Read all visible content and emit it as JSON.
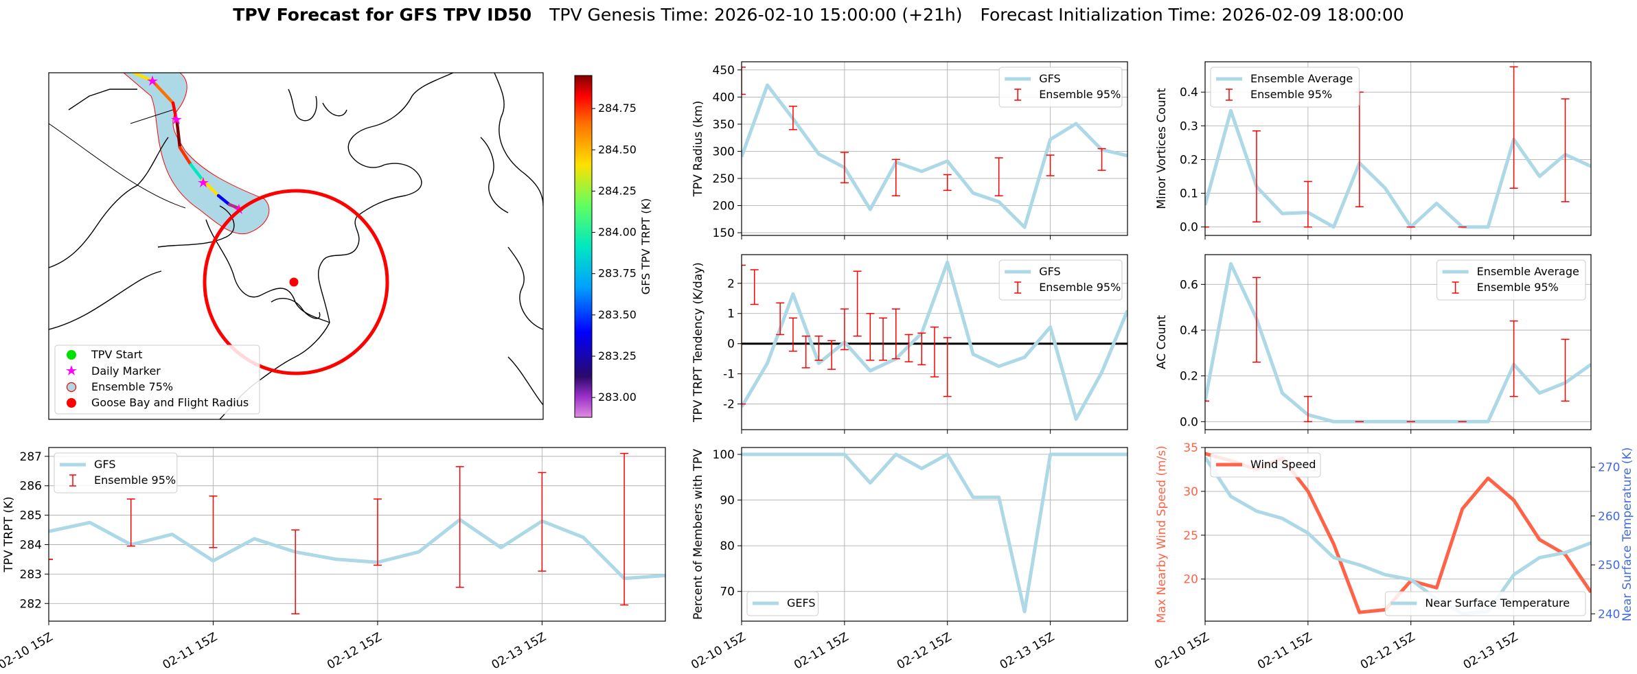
{
  "title": {
    "main": "TPV Forecast for GFS TPV ID50",
    "genesis": "TPV Genesis Time: 2026-02-10 15:00:00 (+21h)",
    "init": "Forecast Initialization Time: 2026-02-09 18:00:00"
  },
  "colors": {
    "gfs": "#add8e6",
    "err": "#ff0000",
    "wind": "#ff6347",
    "temp_axis": "#4169e1",
    "wind_axis": "#ff6347",
    "grid": "#b0b0b0",
    "map_fill": "#add8e6",
    "radius": "#ff0000"
  },
  "time_ticks": [
    "02-10 15Z",
    "02-11 15Z",
    "02-12 15Z",
    "02-13 15Z"
  ],
  "map": {
    "legend": [
      "TPV Start",
      "Daily Marker",
      "Ensemble 75%",
      "Goose Bay and Flight Radius"
    ],
    "colorbar": {
      "label": "GFS TPV TRPT (K)",
      "ticks": [
        "284.75",
        "284.50",
        "284.25",
        "284.00",
        "283.75",
        "283.50",
        "283.25",
        "283.00"
      ],
      "tick_values": [
        284.75,
        284.5,
        284.25,
        284.0,
        283.75,
        283.5,
        283.25,
        283.0
      ],
      "range": [
        282.88,
        284.95
      ]
    }
  },
  "chart_data": [
    {
      "id": "trpt",
      "type": "line",
      "title": "",
      "xlabel": "",
      "ylabel": "TPV TRPT (K)",
      "x_range": [
        0,
        90
      ],
      "ylim": [
        281.4,
        287.3
      ],
      "yticks": [
        282,
        283,
        284,
        285,
        286,
        287
      ],
      "zero_line": false,
      "legend": [
        "GFS",
        "Ensemble 95%"
      ],
      "legend_pos": "upper-left",
      "series": [
        {
          "name": "GFS",
          "x": [
            0,
            6,
            12,
            18,
            24,
            30,
            36,
            42,
            48,
            54,
            60,
            66,
            72,
            78,
            84,
            90
          ],
          "values": [
            284.45,
            284.75,
            284.0,
            284.35,
            283.45,
            284.2,
            283.75,
            283.5,
            283.4,
            283.75,
            284.85,
            283.9,
            284.8,
            284.25,
            282.85,
            282.95
          ]
        }
      ],
      "errorbars": [
        {
          "x": 0,
          "low": 283.5,
          "high": 283.5
        },
        {
          "x": 12,
          "low": 283.95,
          "high": 285.55
        },
        {
          "x": 24,
          "low": 283.9,
          "high": 285.65
        },
        {
          "x": 36,
          "low": 281.65,
          "high": 284.5
        },
        {
          "x": 48,
          "low": 283.3,
          "high": 285.55
        },
        {
          "x": 60,
          "low": 282.55,
          "high": 286.65
        },
        {
          "x": 72,
          "low": 283.1,
          "high": 286.45
        },
        {
          "x": 84,
          "low": 281.95,
          "high": 287.1
        }
      ]
    },
    {
      "id": "radius",
      "type": "line",
      "title": "",
      "xlabel": "",
      "ylabel": "TPV Radius (km)",
      "x_range": [
        0,
        90
      ],
      "ylim": [
        145,
        465
      ],
      "yticks": [
        150,
        200,
        250,
        300,
        350,
        400,
        450
      ],
      "zero_line": false,
      "legend": [
        "GFS",
        "Ensemble 95%"
      ],
      "legend_pos": "upper-right",
      "series": [
        {
          "name": "GFS",
          "x": [
            0,
            6,
            12,
            18,
            24,
            30,
            36,
            42,
            48,
            54,
            60,
            66,
            72,
            78,
            84,
            90
          ],
          "values": [
            290,
            422,
            360,
            295,
            270,
            193,
            280,
            263,
            282,
            223,
            207,
            160,
            322,
            351,
            303,
            292
          ]
        }
      ],
      "errorbars": [
        {
          "x": 0,
          "low": 405,
          "high": 455
        },
        {
          "x": 12,
          "low": 340,
          "high": 383
        },
        {
          "x": 24,
          "low": 242,
          "high": 298
        },
        {
          "x": 36,
          "low": 218,
          "high": 285
        },
        {
          "x": 48,
          "low": 228,
          "high": 257
        },
        {
          "x": 60,
          "low": 218,
          "high": 288
        },
        {
          "x": 72,
          "low": 255,
          "high": 293
        },
        {
          "x": 84,
          "low": 265,
          "high": 305
        }
      ]
    },
    {
      "id": "tendency",
      "type": "line",
      "title": "",
      "xlabel": "",
      "ylabel": "TPV TRPT Tendency (K/day)",
      "x_range": [
        0,
        90
      ],
      "ylim": [
        -2.85,
        2.95
      ],
      "yticks": [
        -2,
        -1,
        0,
        1,
        2
      ],
      "zero_line": true,
      "legend": [
        "GFS",
        "Ensemble 95%"
      ],
      "legend_pos": "upper-right",
      "series": [
        {
          "name": "GFS",
          "x": [
            0,
            6,
            12,
            18,
            24,
            30,
            36,
            42,
            48,
            54,
            60,
            66,
            72,
            78,
            84,
            90
          ],
          "values": [
            -2.1,
            -0.65,
            1.65,
            -0.65,
            0.05,
            -0.9,
            -0.5,
            0.35,
            2.7,
            -0.35,
            -0.75,
            -0.45,
            0.55,
            -2.5,
            -0.95,
            1.1
          ]
        }
      ],
      "errorbars": [
        {
          "x": 0,
          "low": -2.0,
          "high": 2.6
        },
        {
          "x": 3,
          "low": 1.3,
          "high": 2.45
        },
        {
          "x": 9,
          "low": 0.3,
          "high": 1.35
        },
        {
          "x": 12,
          "low": -0.25,
          "high": 0.85
        },
        {
          "x": 15,
          "low": -0.8,
          "high": 0.25
        },
        {
          "x": 18,
          "low": -0.55,
          "high": 0.25
        },
        {
          "x": 21,
          "low": -0.85,
          "high": 0.1
        },
        {
          "x": 24,
          "low": -0.2,
          "high": 1.15
        },
        {
          "x": 27,
          "low": 0.25,
          "high": 2.4
        },
        {
          "x": 30,
          "low": -0.55,
          "high": 1.0
        },
        {
          "x": 33,
          "low": -0.55,
          "high": 0.85
        },
        {
          "x": 36,
          "low": -0.5,
          "high": 1.15
        },
        {
          "x": 39,
          "low": -0.6,
          "high": 0.3
        },
        {
          "x": 42,
          "low": -0.7,
          "high": 0.35
        },
        {
          "x": 45,
          "low": -1.1,
          "high": 0.55
        },
        {
          "x": 48,
          "low": -1.75,
          "high": 0.2
        }
      ]
    },
    {
      "id": "percent",
      "type": "line",
      "title": "",
      "xlabel": "",
      "ylabel": "Percent of Members with TPV",
      "x_range": [
        0,
        90
      ],
      "ylim": [
        63.5,
        101.5
      ],
      "yticks": [
        70,
        80,
        90,
        100
      ],
      "zero_line": false,
      "legend": [
        "GEFS"
      ],
      "legend_pos": "lower-left",
      "series": [
        {
          "name": "GEFS",
          "x": [
            0,
            6,
            12,
            18,
            24,
            30,
            36,
            42,
            48,
            54,
            60,
            66,
            72,
            78,
            84,
            90
          ],
          "values": [
            100,
            100,
            100,
            100,
            100,
            93.75,
            100,
            96.9,
            100,
            90.6,
            90.6,
            65.6,
            100,
            100,
            100,
            100
          ]
        }
      ],
      "errorbars": []
    },
    {
      "id": "minor",
      "type": "line",
      "title": "",
      "xlabel": "",
      "ylabel": "Minor Vortices Count",
      "x_range": [
        0,
        90
      ],
      "ylim": [
        -0.025,
        0.49
      ],
      "yticks": [
        0.0,
        0.1,
        0.2,
        0.3,
        0.4
      ],
      "zero_line": false,
      "legend": [
        "Ensemble Average",
        "Ensemble 95%"
      ],
      "legend_pos": "upper-left",
      "series": [
        {
          "name": "Ensemble Average",
          "x": [
            0,
            6,
            12,
            18,
            24,
            30,
            36,
            42,
            48,
            54,
            60,
            66,
            72,
            78,
            84,
            90
          ],
          "values": [
            0.065,
            0.345,
            0.12,
            0.04,
            0.043,
            0.0,
            0.19,
            0.115,
            0.0,
            0.07,
            0.0,
            0.0,
            0.26,
            0.15,
            0.215,
            0.18
          ]
        }
      ],
      "errorbars": [
        {
          "x": 0,
          "low": 0.0,
          "high": 0.0
        },
        {
          "x": 12,
          "low": 0.015,
          "high": 0.285
        },
        {
          "x": 24,
          "low": 0.0,
          "high": 0.135
        },
        {
          "x": 36,
          "low": 0.06,
          "high": 0.4
        },
        {
          "x": 48,
          "low": 0.0,
          "high": 0.0
        },
        {
          "x": 60,
          "low": 0.0,
          "high": 0.0
        },
        {
          "x": 72,
          "low": 0.115,
          "high": 0.475
        },
        {
          "x": 84,
          "low": 0.075,
          "high": 0.38
        }
      ]
    },
    {
      "id": "ac",
      "type": "line",
      "title": "",
      "xlabel": "",
      "ylabel": "AC Count",
      "x_range": [
        0,
        90
      ],
      "ylim": [
        -0.035,
        0.73
      ],
      "yticks": [
        0.0,
        0.2,
        0.4,
        0.6
      ],
      "zero_line": false,
      "legend": [
        "Ensemble Average",
        "Ensemble 95%"
      ],
      "legend_pos": "upper-right",
      "series": [
        {
          "name": "Ensemble Average",
          "x": [
            0,
            6,
            12,
            18,
            24,
            30,
            36,
            42,
            48,
            54,
            60,
            66,
            72,
            78,
            84,
            90
          ],
          "values": [
            0.09,
            0.69,
            0.45,
            0.125,
            0.03,
            0.0,
            0.0,
            0.0,
            0.0,
            0.0,
            0.0,
            0.0,
            0.25,
            0.125,
            0.17,
            0.25
          ]
        }
      ],
      "errorbars": [
        {
          "x": 0,
          "low": 0.09,
          "high": 0.09
        },
        {
          "x": 12,
          "low": 0.26,
          "high": 0.63
        },
        {
          "x": 24,
          "low": 0.0,
          "high": 0.11
        },
        {
          "x": 36,
          "low": 0.0,
          "high": 0.0
        },
        {
          "x": 48,
          "low": 0.0,
          "high": 0.0
        },
        {
          "x": 60,
          "low": 0.0,
          "high": 0.0
        },
        {
          "x": 72,
          "low": 0.11,
          "high": 0.44
        },
        {
          "x": 84,
          "low": 0.09,
          "high": 0.36
        }
      ]
    },
    {
      "id": "wind_temp",
      "type": "line",
      "title": "",
      "xlabel": "",
      "ylabel": "Max Nearby Wind Speed (m/s)",
      "ylabel_right": "Near Surface Temperature (K)",
      "x_range": [
        0,
        90
      ],
      "ylim": [
        15.2,
        35.0
      ],
      "yticks": [
        20,
        25,
        30,
        35
      ],
      "ylim_right": [
        238.5,
        274.0
      ],
      "yticks_right": [
        240,
        250,
        260,
        270
      ],
      "legend": [
        "Wind Speed"
      ],
      "legend_right": [
        "Near Surface Temperature"
      ],
      "series": [
        {
          "name": "Wind Speed",
          "axis": "left",
          "x": [
            0,
            6,
            12,
            18,
            24,
            30,
            36,
            42,
            48,
            54,
            60,
            66,
            72,
            78,
            84,
            90
          ],
          "values": [
            34.3,
            33.5,
            32.5,
            33.8,
            30.0,
            24.0,
            16.2,
            16.5,
            19.8,
            19.0,
            28.0,
            31.5,
            29.0,
            24.5,
            22.8,
            18.5
          ]
        },
        {
          "name": "Near Surface Temperature",
          "axis": "right",
          "x": [
            0,
            6,
            12,
            18,
            24,
            30,
            36,
            42,
            48,
            54,
            60,
            66,
            72,
            78,
            84,
            90
          ],
          "values": [
            272.0,
            264.0,
            261.0,
            259.5,
            256.5,
            251.5,
            250.0,
            248.0,
            247.0,
            243.0,
            240.0,
            240.5,
            248.0,
            251.5,
            252.5,
            254.5
          ]
        }
      ],
      "errorbars": []
    }
  ]
}
